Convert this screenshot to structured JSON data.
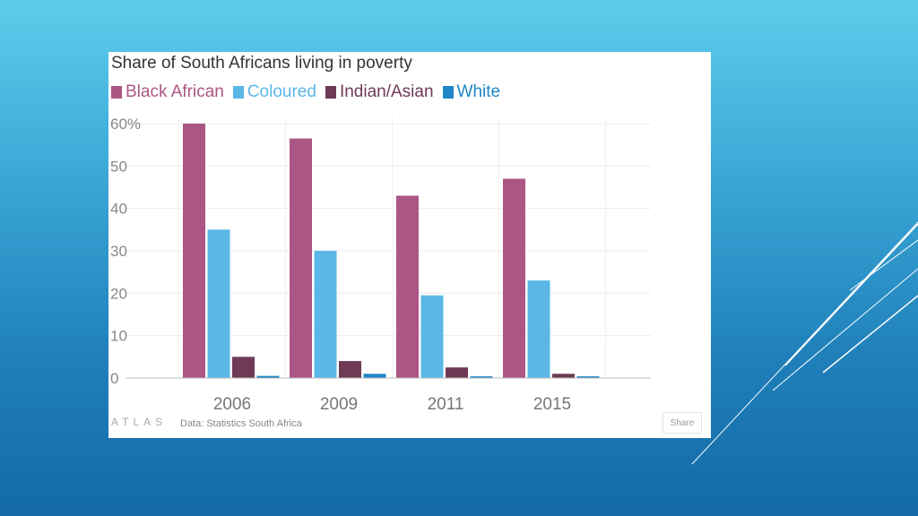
{
  "chart_data": {
    "type": "bar",
    "title": "Share of South Africans living in poverty",
    "categories": [
      "2006",
      "2009",
      "2011",
      "2015"
    ],
    "series": [
      {
        "name": "Black African",
        "values": [
          60,
          56.5,
          43,
          47
        ],
        "color": "#ab5685"
      },
      {
        "name": "Coloured",
        "values": [
          35,
          30,
          19.5,
          23
        ],
        "color": "#5ab7e6"
      },
      {
        "name": "Indian/Asian",
        "values": [
          5,
          4,
          2.5,
          1
        ],
        "color": "#6e3a55"
      },
      {
        "name": "White",
        "values": [
          0.5,
          1,
          0.4,
          0.4
        ],
        "color": "#1e86c8"
      }
    ],
    "ylim": [
      0,
      60
    ],
    "yticks": [
      0,
      10,
      20,
      30,
      40,
      50,
      60
    ],
    "yticklabels": [
      "0",
      "10",
      "20",
      "30",
      "40",
      "50",
      "60%"
    ],
    "xlabel": "",
    "ylabel": "",
    "grid": true,
    "legend_position": "top-left"
  },
  "footer": {
    "brand": "ATLAS",
    "source": "Data: Statistics South Africa",
    "share_label": "Share"
  }
}
